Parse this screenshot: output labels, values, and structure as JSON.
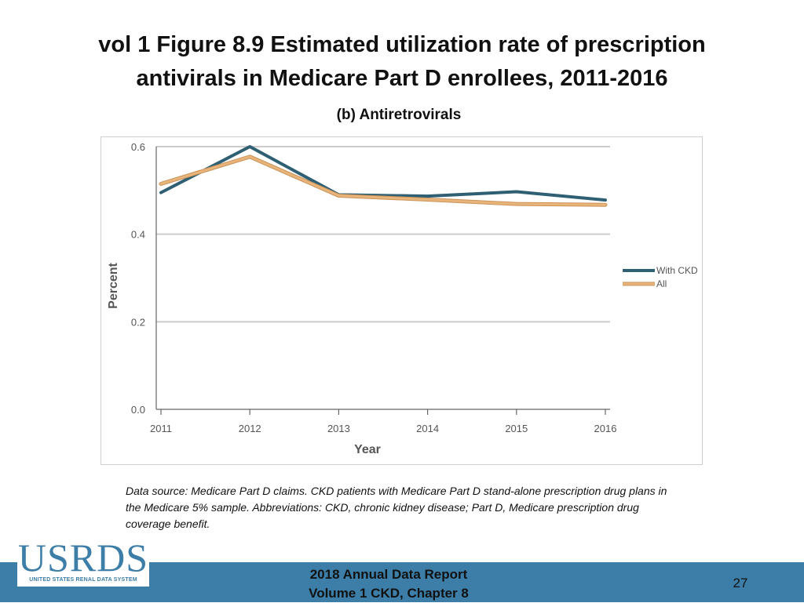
{
  "slide": {
    "title_line1": "vol 1 Figure 8.9 Estimated utilization rate of prescription",
    "title_line2": "antivirals in Medicare Part D enrollees, 2011-2016",
    "subtitle": "(b) Antiretrovirals",
    "source_note": "Data source: Medicare Part D claims. CKD patients with Medicare Part D stand-alone prescription drug plans in the Medicare 5% sample. Abbreviations: CKD, chronic kidney disease; Part D, Medicare prescription drug coverage benefit."
  },
  "chart_data": {
    "type": "line",
    "title": "",
    "xlabel": "Year",
    "ylabel": "Percent",
    "x": [
      "2011",
      "2012",
      "2013",
      "2014",
      "2015",
      "2016"
    ],
    "ylim": [
      0,
      0.6
    ],
    "yticks": [
      "0.0",
      "0.2",
      "0.4",
      "0.6"
    ],
    "ytick_values": [
      0,
      0.2,
      0.4,
      0.6
    ],
    "grid": true,
    "legend_position": "right",
    "series": [
      {
        "name": "With CKD",
        "values": [
          0.495,
          0.6,
          0.49,
          0.487,
          0.497,
          0.478
        ],
        "color": "#2f5f73"
      },
      {
        "name": "All",
        "values": [
          0.515,
          0.577,
          0.488,
          0.479,
          0.469,
          0.467
        ],
        "color": "#e8b47a"
      }
    ]
  },
  "footer": {
    "logo_text": "USRDS",
    "logo_tagline": "UNITED STATES RENAL DATA SYSTEM",
    "report_line1": "2018 Annual Data Report",
    "report_line2": "Volume 1 CKD, Chapter 8",
    "page_number": "27"
  },
  "colors": {
    "footer_bar": "#3c7ea7",
    "grid": "#cccccc",
    "axis": "#666666"
  }
}
